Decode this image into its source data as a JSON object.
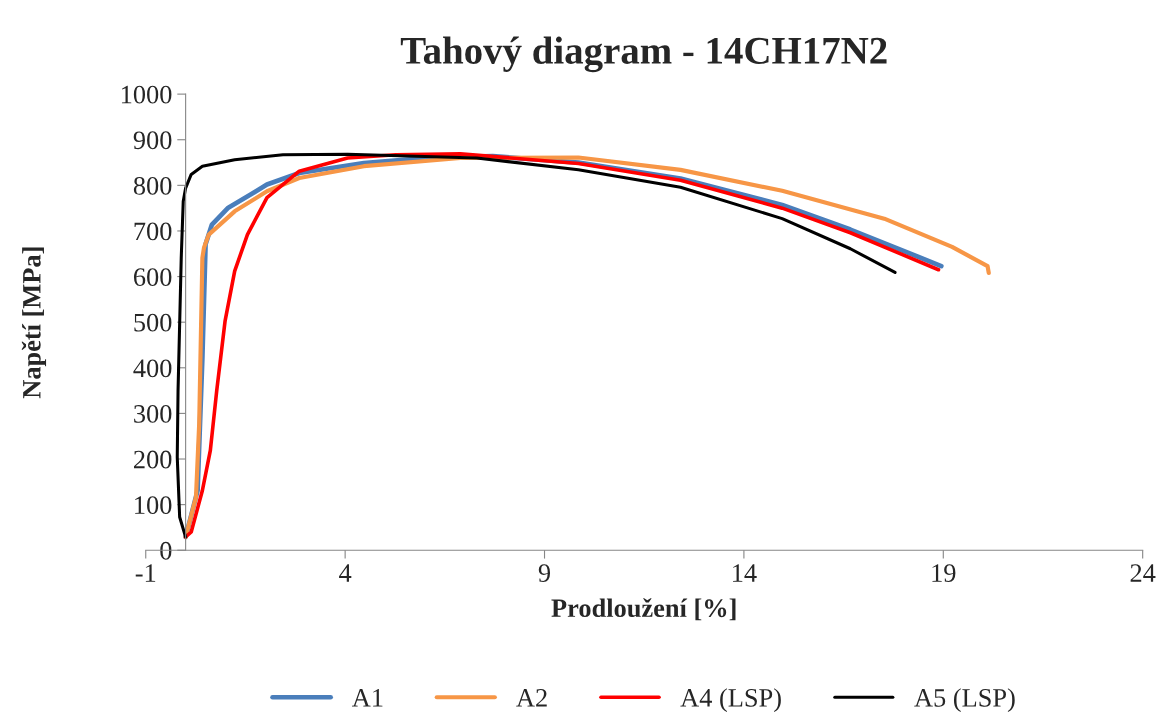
{
  "chart_data": {
    "type": "line",
    "title": "Tahový diagram - 14CH17N2",
    "xlabel": "Prodloužení [%]",
    "ylabel": "Napětí [MPa]",
    "xlim": [
      -1,
      24
    ],
    "xticks": [
      -1,
      4,
      9,
      14,
      19,
      24
    ],
    "ylim": [
      0,
      1000
    ],
    "yticks": [
      0,
      100,
      200,
      300,
      400,
      500,
      600,
      700,
      800,
      900,
      1000
    ],
    "grid": false,
    "legend": "bottom",
    "marker": "none",
    "line_style": "solid",
    "series": [
      {
        "name": "A1",
        "color": "#4a7ebb",
        "x": [
          0,
          0.3,
          0.42,
          0.5,
          0.66,
          1.07,
          1.63,
          2.04,
          2.85,
          4.47,
          6.08,
          7.7,
          9.85,
          12.41,
          14.96,
          16.67,
          18.95
        ],
        "values": [
          29,
          131,
          423,
          671,
          714,
          751,
          780,
          802,
          827,
          849,
          860,
          864,
          850,
          815,
          757,
          703,
          623
        ]
      },
      {
        "name": "A2",
        "color": "#f79646",
        "x": [
          0,
          0.26,
          0.34,
          0.42,
          0.46,
          0.58,
          1.23,
          2.04,
          2.85,
          4.47,
          6.08,
          6.89,
          9.85,
          12.41,
          14.96,
          17.52,
          19.22,
          20.11,
          20.14
        ],
        "values": [
          29,
          117,
          277,
          641,
          663,
          692,
          743,
          787,
          816,
          842,
          854,
          860,
          861,
          834,
          788,
          727,
          665,
          623,
          608
        ]
      },
      {
        "name": "A4 (LSP)",
        "color": "#ff0000",
        "x": [
          0,
          0.14,
          0.42,
          0.62,
          0.78,
          0.99,
          1.23,
          1.55,
          2.04,
          2.85,
          4.06,
          5.27,
          6.89,
          9.85,
          12.41,
          14.96,
          16.67,
          18.88
        ],
        "values": [
          29,
          40,
          131,
          219,
          350,
          503,
          612,
          692,
          773,
          831,
          860,
          867,
          869,
          848,
          811,
          750,
          696,
          615
        ]
      },
      {
        "name": "A5 (LSP)",
        "color": "#000000",
        "x": [
          0,
          -0.15,
          -0.21,
          -0.19,
          -0.15,
          -0.11,
          -0.06,
          0,
          0.14,
          0.42,
          1.23,
          2.44,
          4.06,
          7.3,
          9.85,
          12.41,
          14.96,
          16.67,
          17.79
        ],
        "values": [
          29,
          73,
          204,
          350,
          496,
          641,
          765,
          794,
          824,
          842,
          856,
          867,
          868,
          860,
          834,
          796,
          727,
          661,
          609
        ]
      }
    ]
  }
}
